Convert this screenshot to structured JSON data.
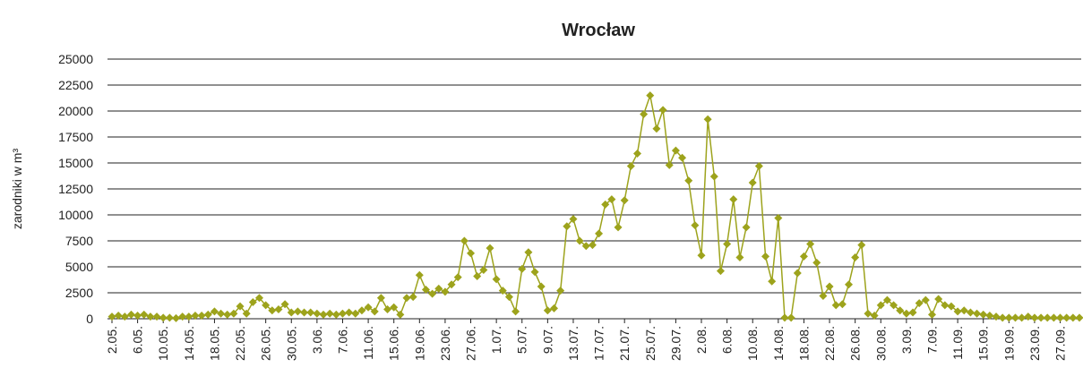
{
  "chart_data": {
    "type": "line",
    "title": "Wrocław",
    "y_label": "zarodniki w m³",
    "categories": [
      "2.05.",
      null,
      null,
      null,
      "6.05.",
      null,
      null,
      null,
      "10.05.",
      null,
      null,
      null,
      "14.05.",
      null,
      null,
      null,
      "18.05.",
      null,
      null,
      null,
      "22.05.",
      null,
      null,
      null,
      "26.05.",
      null,
      null,
      null,
      "30.05.",
      null,
      null,
      null,
      "3.06.",
      null,
      null,
      null,
      "7.06.",
      null,
      null,
      null,
      "11.06.",
      null,
      null,
      null,
      "15.06.",
      null,
      null,
      null,
      "19.06.",
      null,
      null,
      null,
      "23.06.",
      null,
      null,
      null,
      "27.06.",
      null,
      null,
      null,
      "1.07.",
      null,
      null,
      null,
      "5.07.",
      null,
      null,
      null,
      "9.07.",
      null,
      null,
      null,
      "13.07.",
      null,
      null,
      null,
      "17.07.",
      null,
      null,
      null,
      "21.07.",
      null,
      null,
      null,
      "25.07.",
      null,
      null,
      null,
      "29.07.",
      null,
      null,
      null,
      "2.08.",
      null,
      null,
      null,
      "6.08.",
      null,
      null,
      null,
      "10.08.",
      null,
      null,
      null,
      "14.08.",
      null,
      null,
      null,
      "18.08.",
      null,
      null,
      null,
      "22.08.",
      null,
      null,
      null,
      "26.08.",
      null,
      null,
      null,
      "30.08.",
      null,
      null,
      null,
      "3.09.",
      null,
      null,
      null,
      "7.09.",
      null,
      null,
      null,
      "11.09.",
      null,
      null,
      null,
      "15.09.",
      null,
      null,
      null,
      "19.09.",
      null,
      null,
      null,
      "23.09.",
      null,
      null,
      null,
      "27.09.",
      null,
      null,
      null
    ],
    "series": [
      {
        "name": "Wrocław",
        "color": "#9da31c",
        "values": [
          200,
          300,
          200,
          400,
          300,
          400,
          200,
          200,
          100,
          100,
          50,
          200,
          200,
          300,
          300,
          400,
          700,
          500,
          400,
          500,
          1200,
          500,
          1600,
          2000,
          1300,
          800,
          900,
          1400,
          600,
          700,
          600,
          600,
          500,
          400,
          500,
          400,
          500,
          600,
          500,
          800,
          1100,
          700,
          2000,
          900,
          1100,
          400,
          2000,
          2100,
          4200,
          2800,
          2400,
          2900,
          2600,
          3300,
          4000,
          7500,
          6300,
          4100,
          4700,
          6800,
          3800,
          2700,
          2100,
          700,
          4800,
          6400,
          4500,
          3100,
          800,
          1000,
          2700,
          8900,
          9600,
          7500,
          7000,
          7100,
          8200,
          11000,
          11500,
          8800,
          11400,
          14700,
          15900,
          19700,
          21500,
          18300,
          20100,
          14800,
          16200,
          15500,
          13300,
          9000,
          6100,
          19200,
          13700,
          4600,
          7200,
          11500,
          5900,
          8800,
          13100,
          14700,
          6000,
          3600,
          9700,
          100,
          100,
          4400,
          6000,
          7200,
          5400,
          2200,
          3100,
          1300,
          1400,
          3300,
          5900,
          7100,
          500,
          300,
          1300,
          1800,
          1300,
          800,
          500,
          600,
          1500,
          1800,
          400,
          1900,
          1300,
          1200,
          700,
          800,
          600,
          500,
          400,
          300,
          200,
          100,
          100,
          100,
          100,
          200,
          100,
          100,
          100,
          100,
          100,
          100,
          100,
          100
        ]
      }
    ],
    "ylim": [
      0,
      25000
    ],
    "yticks": [
      0,
      2500,
      5000,
      7500,
      10000,
      12500,
      15000,
      17500,
      20000,
      22500,
      25000
    ],
    "grid": true
  }
}
